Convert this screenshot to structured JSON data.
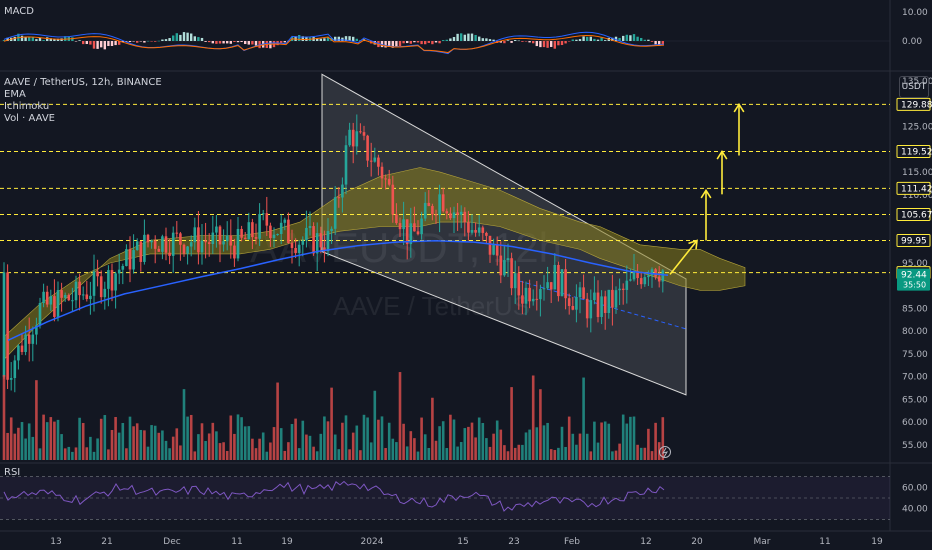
{
  "symbol_line": "AAVE / TetherUS, 12h, BINANCE",
  "indicators": [
    "EMA",
    "Ichimoku",
    "Vol · AAVE"
  ],
  "macd_label": "MACD",
  "rsi_label": "RSI",
  "currency_button": "USDT",
  "watermark": {
    "ticker": "AAVEUSDT, 12h",
    "name": "AAVE / TetherUS"
  },
  "colors": {
    "background": "#131722",
    "bull": "#26a69a",
    "bear": "#ef5350",
    "ema": "#2962ff",
    "levels": "#ffeb3b",
    "channel": "#ffffff",
    "cloud": "#8a7f1c",
    "rsi": "#7e57c2",
    "price_tag": "#089981"
  },
  "chart_data": [
    {
      "type": "candlestick",
      "title": "AAVE / TetherUS, 12h, BINANCE",
      "price_axis": {
        "ticks": [
          135.0,
          125.0,
          115.0,
          110.0,
          95.0,
          85.0,
          80.0,
          75.0,
          70.0,
          65.0,
          60.0,
          55.0
        ],
        "ylim": [
          53,
          137
        ]
      },
      "time_axis": {
        "ticks": [
          "13",
          "21",
          "Dec",
          "11",
          "19",
          "2024",
          "15",
          "23",
          "Feb",
          "12",
          "20",
          "Mar",
          "11",
          "19"
        ]
      },
      "price_levels": [
        129.88,
        119.52,
        111.42,
        105.67,
        99.95,
        92.88
      ],
      "last_price": 92.44,
      "countdown": "35:50",
      "projected_targets": [
        99.95,
        111.42,
        119.52,
        129.88
      ],
      "descending_channel": {
        "start": {
          "time": "Dec 23",
          "upper": 136.5,
          "lower": 97.5
        },
        "end": {
          "time": "Feb 17",
          "upper": 91.5,
          "lower": 66.0
        }
      },
      "series": [
        {
          "name": "EMA",
          "type": "line",
          "values": [
            78,
            82,
            85.5,
            88.2,
            90.1,
            92.0,
            93.8,
            95.8,
            97.6,
            98.8,
            99.6,
            99.9,
            99.6,
            98.6,
            97.0,
            95.0,
            93.2,
            92.3
          ]
        },
        {
          "name": "Vol · AAVE",
          "type": "bar"
        }
      ]
    },
    {
      "type": "line",
      "title": "MACD",
      "y_axis": {
        "ticks": [
          10.0,
          0.0
        ]
      }
    },
    {
      "type": "line",
      "title": "RSI",
      "y_axis": {
        "ticks": [
          60.0,
          40.0
        ]
      },
      "series": [
        {
          "name": "RSI",
          "values": [
            52,
            55,
            48,
            60,
            54,
            58,
            50,
            62,
            57,
            65,
            51,
            45,
            55,
            40,
            48,
            44,
            52,
            61
          ]
        }
      ]
    }
  ]
}
